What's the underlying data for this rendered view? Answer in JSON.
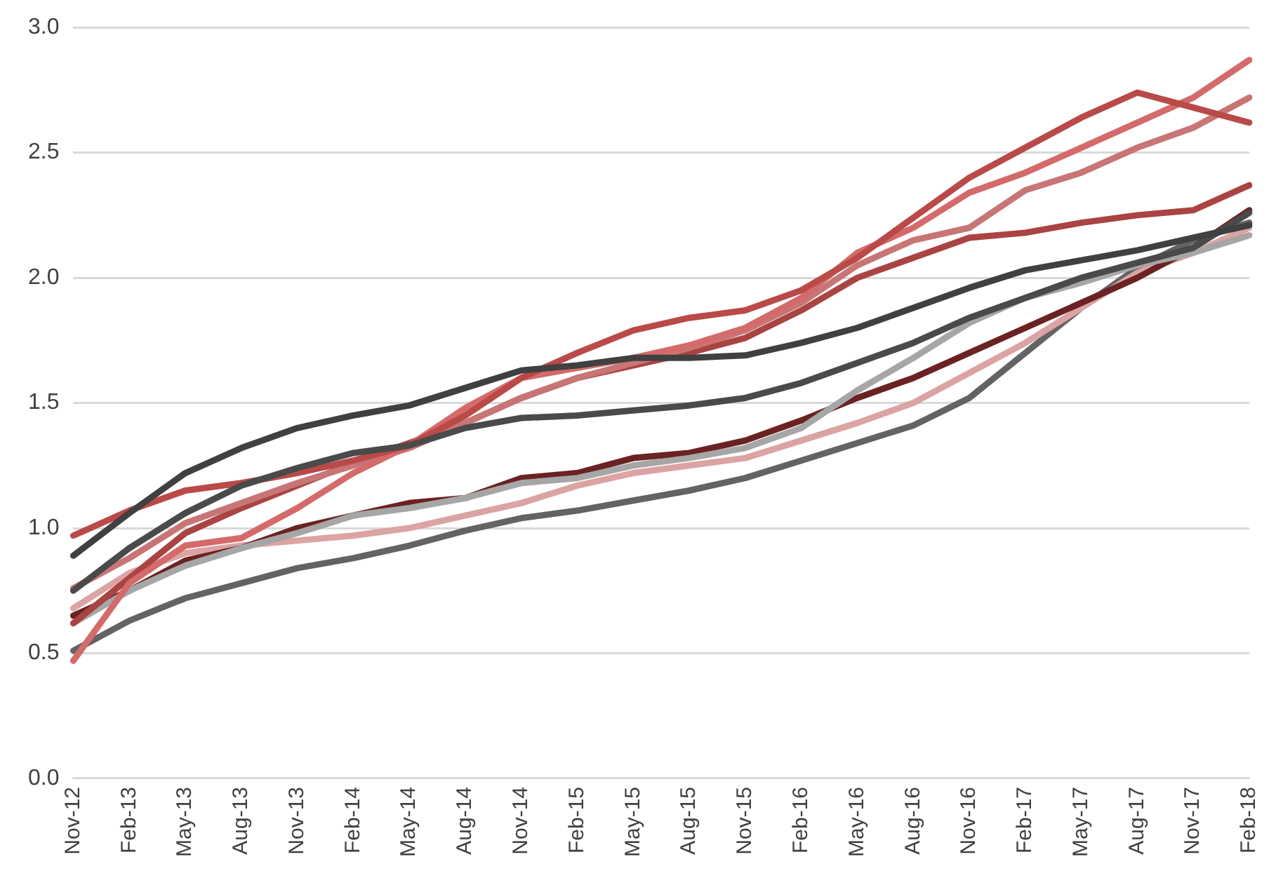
{
  "chart_data": {
    "type": "line",
    "categories": [
      "Nov-12",
      "Feb-13",
      "May-13",
      "Aug-13",
      "Nov-13",
      "Feb-14",
      "May-14",
      "Aug-14",
      "Nov-14",
      "Feb-15",
      "May-15",
      "Aug-15",
      "Nov-15",
      "Feb-16",
      "May-16",
      "Aug-16",
      "Nov-16",
      "Feb-17",
      "May-17",
      "Aug-17",
      "Nov-17",
      "Feb-18"
    ],
    "series": [
      {
        "color": "#404040",
        "values": [
          0.89,
          1.06,
          1.22,
          1.32,
          1.4,
          1.45,
          1.49,
          1.56,
          1.63,
          1.65,
          1.68,
          1.68,
          1.69,
          1.74,
          1.8,
          1.88,
          1.96,
          2.03,
          2.07,
          2.11,
          2.16,
          2.21
        ]
      },
      {
        "color": "#4a4a4a",
        "values": [
          0.75,
          0.92,
          1.06,
          1.17,
          1.24,
          1.3,
          1.33,
          1.4,
          1.44,
          1.45,
          1.47,
          1.49,
          1.52,
          1.58,
          1.66,
          1.74,
          1.84,
          1.92,
          2.0,
          2.06,
          2.12,
          2.26
        ]
      },
      {
        "color": "#b94a48",
        "values": [
          0.97,
          1.07,
          1.15,
          1.18,
          1.22,
          1.27,
          1.33,
          1.45,
          1.6,
          1.7,
          1.79,
          1.84,
          1.87,
          1.95,
          2.08,
          2.24,
          2.4,
          2.52,
          2.64,
          2.74,
          2.68,
          2.62
        ]
      },
      {
        "color": "#d46a6a",
        "values": [
          0.47,
          0.78,
          0.93,
          0.96,
          1.08,
          1.22,
          1.33,
          1.48,
          1.6,
          1.64,
          1.68,
          1.73,
          1.8,
          1.92,
          2.1,
          2.2,
          2.34,
          2.42,
          2.52,
          2.62,
          2.72,
          2.87
        ]
      },
      {
        "color": "#c87575",
        "values": [
          0.76,
          0.88,
          1.02,
          1.1,
          1.18,
          1.25,
          1.32,
          1.42,
          1.52,
          1.6,
          1.66,
          1.72,
          1.79,
          1.9,
          2.05,
          2.15,
          2.2,
          2.35,
          2.42,
          2.52,
          2.6,
          2.72
        ]
      },
      {
        "color": "#a94442",
        "values": [
          0.62,
          0.8,
          0.98,
          1.08,
          1.17,
          1.26,
          1.34,
          1.42,
          1.52,
          1.6,
          1.65,
          1.7,
          1.76,
          1.87,
          2.0,
          2.08,
          2.16,
          2.18,
          2.22,
          2.25,
          2.27,
          2.37
        ]
      },
      {
        "color": "#a6a6a6",
        "values": [
          0.62,
          0.75,
          0.85,
          0.92,
          0.98,
          1.05,
          1.08,
          1.12,
          1.18,
          1.2,
          1.25,
          1.28,
          1.32,
          1.4,
          1.55,
          1.68,
          1.82,
          1.92,
          1.98,
          2.05,
          2.1,
          2.17
        ]
      },
      {
        "color": "#6b2222",
        "values": [
          0.65,
          0.75,
          0.87,
          0.92,
          1.0,
          1.05,
          1.1,
          1.12,
          1.2,
          1.22,
          1.28,
          1.3,
          1.35,
          1.43,
          1.52,
          1.6,
          1.7,
          1.8,
          1.9,
          2.0,
          2.12,
          2.27
        ]
      },
      {
        "color": "#dca3a3",
        "values": [
          0.68,
          0.82,
          0.9,
          0.93,
          0.95,
          0.97,
          1.0,
          1.05,
          1.1,
          1.17,
          1.22,
          1.25,
          1.28,
          1.35,
          1.42,
          1.5,
          1.62,
          1.74,
          1.88,
          2.02,
          2.1,
          2.2
        ]
      },
      {
        "color": "#636363",
        "values": [
          0.51,
          0.63,
          0.72,
          0.78,
          0.84,
          0.88,
          0.93,
          0.99,
          1.04,
          1.07,
          1.11,
          1.15,
          1.2,
          1.27,
          1.34,
          1.41,
          1.52,
          1.7,
          1.88,
          2.04,
          2.15,
          2.22
        ]
      }
    ],
    "ylim": [
      0,
      3
    ],
    "yticks": [
      {
        "value": 0,
        "label": "0.0"
      },
      {
        "value": 0.5,
        "label": "0.5"
      },
      {
        "value": 1,
        "label": "1.0"
      },
      {
        "value": 1.5,
        "label": "1.5"
      },
      {
        "value": 2,
        "label": "2.0"
      },
      {
        "value": 2.5,
        "label": "2.5"
      },
      {
        "value": 3,
        "label": "3.0"
      }
    ],
    "grid": "y",
    "marker": "none",
    "line_style": "solid",
    "legend": false
  }
}
